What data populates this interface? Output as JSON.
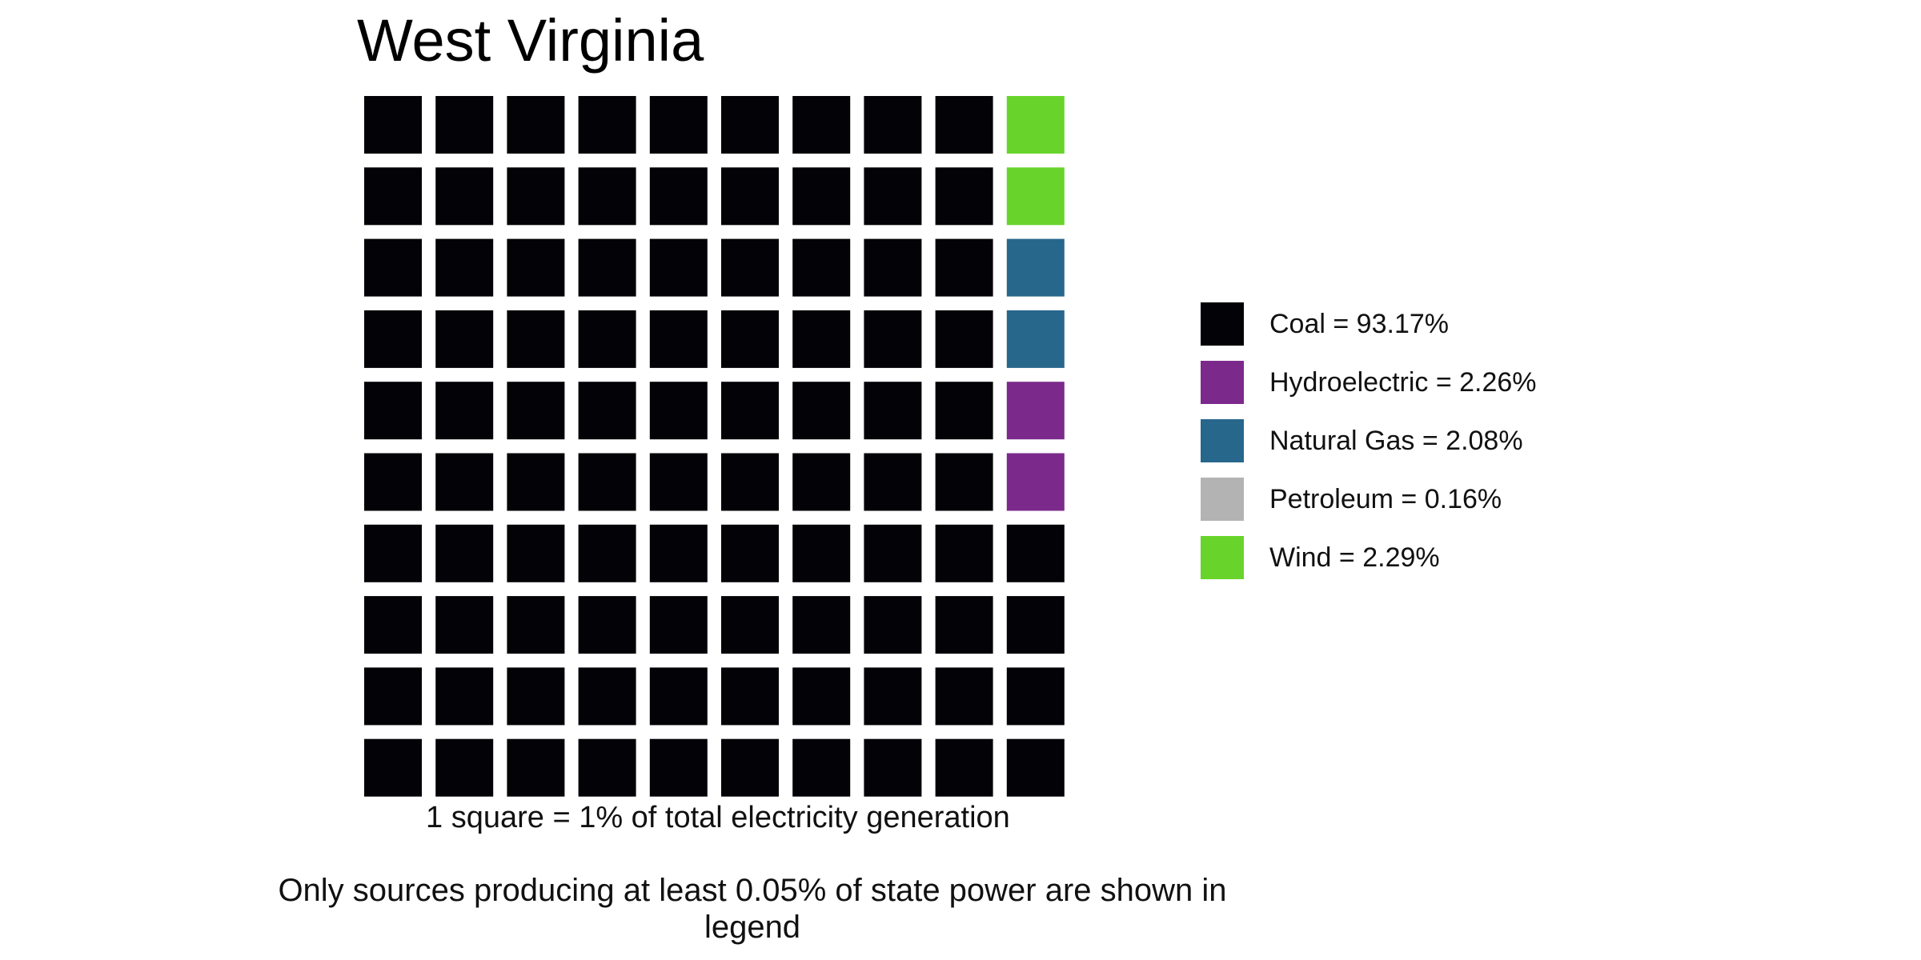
{
  "chart_data": {
    "type": "waffle",
    "title": "West Virginia",
    "grid": {
      "rows": 10,
      "cols": 10,
      "fill_order": "column-wise, right column from top"
    },
    "unit_note": "1 square = 1% of total electricity generation",
    "footnote": "Only sources producing at least 0.05% of state power are shown in legend",
    "legend_placement": "right",
    "series": [
      {
        "name": "Coal",
        "label": "Coal = 93.17%",
        "percent": 93.17,
        "squares": 94,
        "color": "#030307"
      },
      {
        "name": "Hydroelectric",
        "label": "Hydroelectric = 2.26%",
        "percent": 2.26,
        "squares": 2,
        "color": "#7b2a8c"
      },
      {
        "name": "Natural Gas",
        "label": "Natural Gas = 2.08%",
        "percent": 2.08,
        "squares": 2,
        "color": "#27678c"
      },
      {
        "name": "Petroleum",
        "label": "Petroleum = 0.16%",
        "percent": 0.16,
        "squares": 0,
        "color": "#b3b3b3"
      },
      {
        "name": "Wind",
        "label": "Wind = 2.29%",
        "percent": 2.29,
        "squares": 2,
        "color": "#68d42b"
      }
    ],
    "last_column_top_to_bottom": [
      "Wind",
      "Wind",
      "Natural Gas",
      "Natural Gas",
      "Hydroelectric",
      "Hydroelectric",
      "Coal",
      "Coal",
      "Coal",
      "Coal"
    ]
  }
}
